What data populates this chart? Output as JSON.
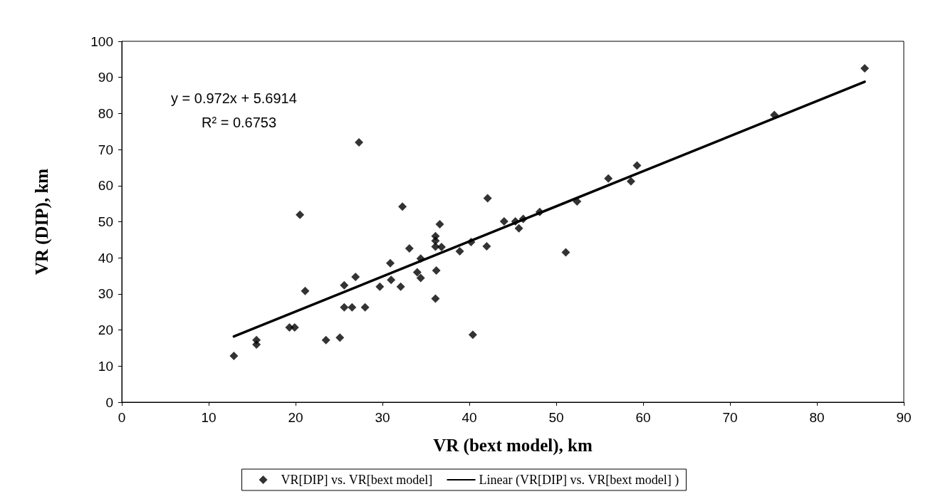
{
  "chart_data": {
    "type": "scatter",
    "xlabel": "VR (bext model), km",
    "ylabel": "VR (DIP), km",
    "annotations": [
      "y = 0.972x + 5.6914",
      "R² = 0.6753"
    ],
    "xlim": [
      0,
      90
    ],
    "xticks": [
      0,
      10,
      20,
      30,
      40,
      50,
      60,
      70,
      80,
      90
    ],
    "ylim": [
      0,
      100
    ],
    "yticks": [
      0,
      10,
      20,
      30,
      40,
      50,
      60,
      70,
      80,
      90,
      100
    ],
    "grid": false,
    "legend": "bottom",
    "marker": "diamond",
    "series": [
      {
        "name": "VR[DIP] vs. VR[bext model]",
        "color": "#000000",
        "x": [
          12.9,
          15.5,
          15.5,
          19.3,
          19.9,
          20.5,
          21.1,
          23.5,
          25.1,
          25.6,
          25.6,
          26.5,
          26.9,
          28.0,
          27.3,
          29.7,
          30.9,
          31.0,
          32.1,
          32.3,
          33.1,
          34.0,
          34.4,
          34.4,
          36.1,
          36.2,
          36.1,
          36.1,
          36.1,
          36.6,
          36.8,
          38.9,
          40.2,
          40.4,
          42.1,
          42.0,
          44.0,
          45.3,
          45.7,
          46.2,
          48.1,
          51.1,
          52.4,
          56.0,
          58.6,
          59.3,
          75.1,
          85.5
        ],
        "values": [
          12.8,
          17.2,
          16.0,
          20.7,
          20.7,
          51.9,
          30.8,
          17.2,
          17.9,
          32.4,
          26.3,
          26.3,
          34.7,
          26.3,
          72.0,
          32.0,
          38.5,
          33.9,
          32.0,
          54.2,
          42.6,
          36.0,
          34.4,
          39.8,
          28.7,
          36.5,
          46.0,
          44.7,
          43.1,
          49.3,
          43.0,
          41.8,
          44.4,
          18.7,
          56.5,
          43.2,
          50.1,
          50.1,
          48.2,
          50.8,
          52.7,
          41.5,
          55.6,
          62.0,
          61.2,
          65.6,
          79.6,
          92.5
        ]
      },
      {
        "name": "Linear (VR[DIP] vs. VR[bext model] )",
        "type": "line",
        "color": "#000000",
        "marker": "none",
        "line_style": "solid",
        "x": [
          12.9,
          85.5
        ],
        "values": [
          18.2,
          88.8
        ]
      }
    ]
  }
}
